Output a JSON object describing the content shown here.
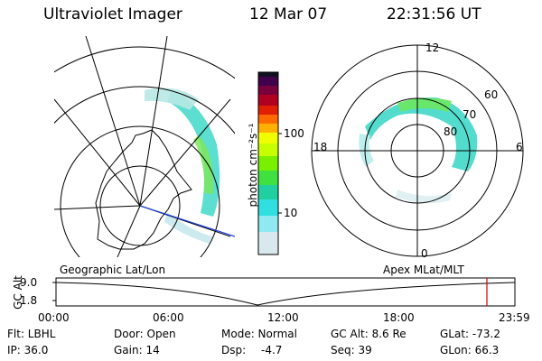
{
  "header": {
    "instrument": "Ultraviolet Imager",
    "date": "12 Mar 07",
    "time": "22:31:56 UT"
  },
  "colorbar": {
    "unit_label": "photon cm⁻²s⁻¹",
    "ticks": [
      "100",
      "10"
    ]
  },
  "left_panel": {
    "label": "Geographic Lat/Lon",
    "projection": "geographic"
  },
  "right_panel": {
    "label": "Apex MLat/MLT",
    "mlt_labels": [
      "12",
      "18",
      "6",
      "0"
    ],
    "lat_labels": [
      "60",
      "70",
      "80"
    ]
  },
  "altitude_plot": {
    "axis_label": "GC Alt",
    "y_ticks": [
      "9.0",
      "1.8"
    ],
    "x_ticks": [
      "00:00",
      "06:00",
      "12:00",
      "18:00",
      "23:59"
    ],
    "marker_color": "#d00000"
  },
  "footer": {
    "flt": "Flt: LBHL",
    "ip": "IP: 36.0",
    "door": "Door: Open",
    "gain": "Gain: 14",
    "mode": "Mode: Normal",
    "dsp_label": "Dsp:",
    "dsp_value": "-4.7",
    "gcalt": "GC Alt: 8.6 Re",
    "seq": "Seq: 39",
    "glat": "GLat: -73.2",
    "glon": "GLon: 66.3"
  }
}
